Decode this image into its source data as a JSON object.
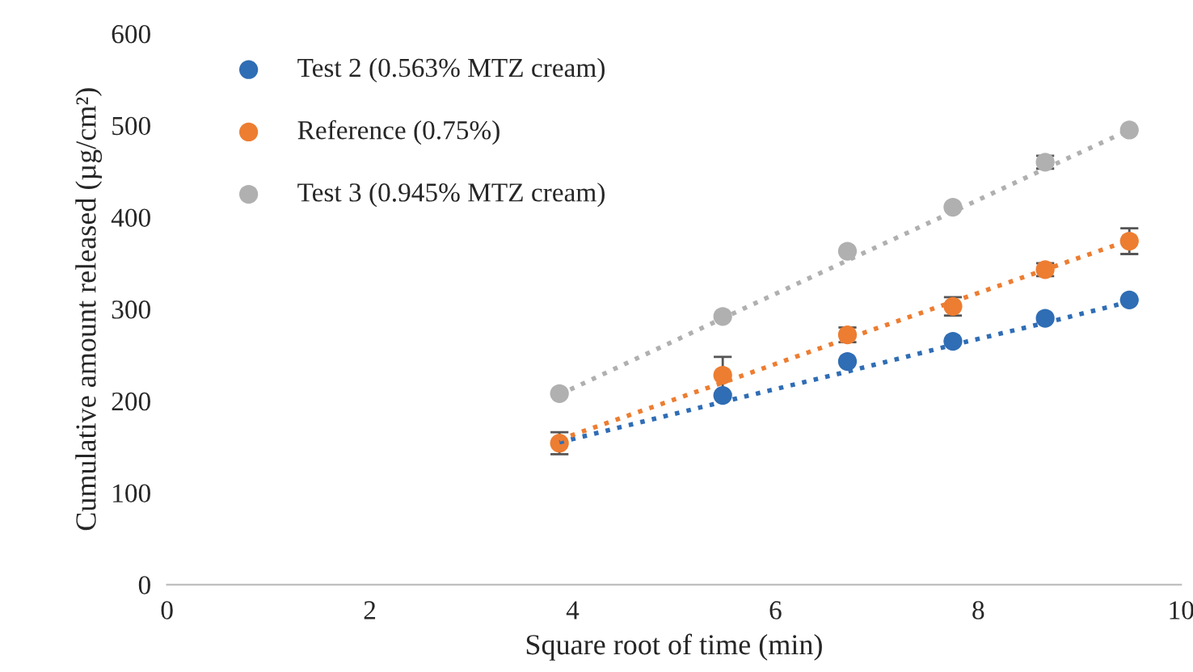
{
  "chart_data": {
    "type": "scatter",
    "xlabel": "Square root of time (min)",
    "ylabel": "Cumulative amount released (µg/cm²)",
    "x": [
      3.87,
      5.48,
      6.71,
      7.75,
      8.66,
      9.49
    ],
    "series": [
      {
        "name": "Test 2 (0.563% MTZ cream)",
        "color": "#2f6db5",
        "values": [
          null,
          206,
          243,
          265,
          290,
          310
        ],
        "errors": [
          null,
          null,
          null,
          null,
          null,
          null
        ]
      },
      {
        "name": "Reference (0.75%)",
        "color": "#ed7d31",
        "values": [
          154,
          228,
          272,
          303,
          343,
          374
        ],
        "errors": [
          12,
          20,
          8,
          10,
          7,
          14
        ]
      },
      {
        "name": "Test 3 (0.945% MTZ cream)",
        "color": "#b0b0b0",
        "values": [
          208,
          292,
          363,
          411,
          460,
          495
        ],
        "errors": [
          null,
          null,
          null,
          null,
          7,
          null
        ]
      },
      {
        "type": "line",
        "color": "#2f6db5",
        "values": [
          155,
          199,
          232,
          261,
          285,
          308
        ],
        "line_style": "dotted",
        "marker": "none"
      },
      {
        "type": "line",
        "color": "#ed7d31",
        "values": [
          158,
          220,
          268,
          308,
          343,
          375
        ],
        "line_style": "dotted",
        "marker": "none"
      },
      {
        "type": "line",
        "color": "#b0b0b0",
        "values": [
          207,
          290,
          353,
          406,
          453,
          495
        ],
        "line_style": "dotted",
        "marker": "none"
      }
    ],
    "xlim": [
      0,
      10
    ],
    "xticks": [
      0,
      2,
      4,
      6,
      8,
      10
    ],
    "ylim": [
      0,
      600
    ],
    "yticks": [
      0,
      100,
      200,
      300,
      400,
      500,
      600
    ],
    "marker": "circle",
    "grid": false,
    "legend": "top left"
  }
}
